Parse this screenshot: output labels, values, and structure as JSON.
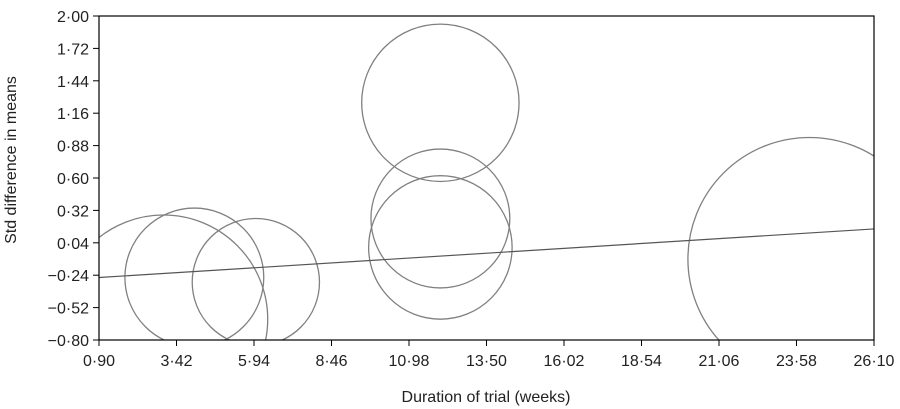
{
  "chart_data": {
    "type": "scatter",
    "title": "",
    "xlabel": "Duration of trial (weeks)",
    "ylabel": "Std difference in means",
    "xlim": [
      0.9,
      26.1
    ],
    "ylim": [
      -0.8,
      2.0
    ],
    "x_ticks": [
      "0·90",
      "3·42",
      "5·94",
      "8·46",
      "10·98",
      "13·50",
      "16·02",
      "18·54",
      "21·06",
      "23·58",
      "26·10"
    ],
    "y_ticks": [
      "2·00",
      "1·72",
      "1·44",
      "1·16",
      "0·88",
      "0·60",
      "0·32",
      "0·04",
      "−0·24",
      "−0·52",
      "−0·80"
    ],
    "grid": false,
    "legend": "none",
    "points": [
      {
        "x": 3.0,
        "y": -0.62,
        "r": 0.9
      },
      {
        "x": 4.0,
        "y": -0.26,
        "r": 0.6
      },
      {
        "x": 6.0,
        "y": -0.3,
        "r": 0.55
      },
      {
        "x": 12.0,
        "y": 1.25,
        "r": 0.68
      },
      {
        "x": 12.0,
        "y": 0.25,
        "r": 0.6
      },
      {
        "x": 12.0,
        "y": 0.0,
        "r": 0.62
      },
      {
        "x": 24.0,
        "y": -0.1,
        "r": 1.05
      }
    ],
    "regression_line": {
      "x": [
        0.9,
        26.1
      ],
      "y": [
        -0.26,
        0.16
      ]
    },
    "colors": {
      "bubble": "#808080",
      "line": "#555555",
      "axis": "#000000"
    }
  }
}
